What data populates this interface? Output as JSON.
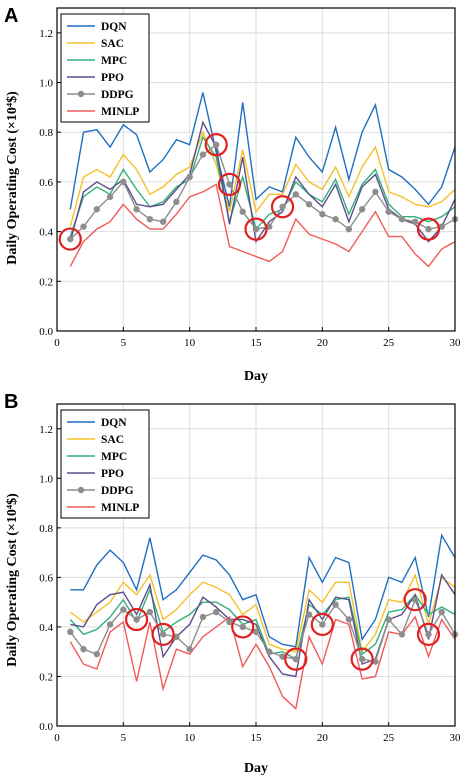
{
  "colors": {
    "DQN": "#1f6fc0",
    "SAC": "#f5c02a",
    "MPC": "#33b07a",
    "PPO": "#5a4e8c",
    "DDPG": "#8e8e8e",
    "MINLP": "#f05a5a",
    "highlight": "#e02020"
  },
  "chart_data": [
    {
      "type": "line",
      "panel_label": "A",
      "xlabel": "Day",
      "ylabel": "Daily Operating Cost (×10⁴$)",
      "xlim": [
        0,
        30
      ],
      "ylim": [
        0.0,
        1.3
      ],
      "xticks": [
        "0",
        "5",
        "10",
        "15",
        "20",
        "25",
        "30"
      ],
      "yticks": [
        "0.0",
        "0.2",
        "0.4",
        "0.6",
        "0.8",
        "1.0",
        "1.2"
      ],
      "grid": true,
      "legend": "top-left",
      "x": [
        1,
        2,
        3,
        4,
        5,
        6,
        7,
        8,
        9,
        10,
        11,
        12,
        13,
        14,
        15,
        16,
        17,
        18,
        19,
        20,
        21,
        22,
        23,
        24,
        25,
        26,
        27,
        28,
        29,
        30
      ],
      "series": [
        {
          "name": "DQN",
          "values": [
            0.49,
            0.8,
            0.81,
            0.74,
            0.83,
            0.79,
            0.64,
            0.69,
            0.77,
            0.75,
            0.96,
            0.72,
            0.5,
            0.92,
            0.53,
            0.58,
            0.56,
            0.78,
            0.7,
            0.64,
            0.82,
            0.61,
            0.8,
            0.91,
            0.65,
            0.62,
            0.57,
            0.51,
            0.58,
            0.74
          ]
        },
        {
          "name": "SAC",
          "values": [
            0.42,
            0.62,
            0.65,
            0.62,
            0.71,
            0.65,
            0.55,
            0.58,
            0.63,
            0.66,
            0.8,
            0.67,
            0.48,
            0.73,
            0.48,
            0.55,
            0.55,
            0.67,
            0.6,
            0.57,
            0.66,
            0.54,
            0.66,
            0.74,
            0.56,
            0.54,
            0.51,
            0.5,
            0.52,
            0.57
          ]
        },
        {
          "name": "MPC",
          "values": [
            0.38,
            0.54,
            0.58,
            0.55,
            0.65,
            0.57,
            0.5,
            0.52,
            0.58,
            0.61,
            0.78,
            0.7,
            0.44,
            0.62,
            0.41,
            0.47,
            0.49,
            0.6,
            0.55,
            0.52,
            0.61,
            0.47,
            0.59,
            0.65,
            0.51,
            0.46,
            0.46,
            0.44,
            0.46,
            0.5
          ]
        },
        {
          "name": "PPO",
          "values": [
            0.36,
            0.56,
            0.6,
            0.57,
            0.61,
            0.51,
            0.5,
            0.51,
            0.57,
            0.63,
            0.84,
            0.74,
            0.43,
            0.7,
            0.36,
            0.44,
            0.48,
            0.62,
            0.55,
            0.5,
            0.59,
            0.44,
            0.58,
            0.63,
            0.49,
            0.45,
            0.43,
            0.36,
            0.42,
            0.53
          ]
        },
        {
          "name": "DDPG",
          "values": [
            0.37,
            0.42,
            0.49,
            0.54,
            0.6,
            0.49,
            0.45,
            0.44,
            0.52,
            0.62,
            0.71,
            0.75,
            0.59,
            0.48,
            0.41,
            0.42,
            0.5,
            0.55,
            0.51,
            0.47,
            0.45,
            0.41,
            0.49,
            0.56,
            0.48,
            0.45,
            0.44,
            0.41,
            0.42,
            0.45
          ]
        },
        {
          "name": "MINLP",
          "values": [
            0.26,
            0.36,
            0.41,
            0.44,
            0.51,
            0.45,
            0.41,
            0.41,
            0.47,
            0.54,
            0.56,
            0.59,
            0.34,
            0.32,
            0.3,
            0.28,
            0.32,
            0.45,
            0.39,
            0.37,
            0.35,
            0.32,
            0.4,
            0.48,
            0.38,
            0.38,
            0.31,
            0.26,
            0.33,
            0.36
          ]
        }
      ],
      "highlight_days": [
        1,
        12,
        13,
        15,
        17,
        28
      ]
    },
    {
      "type": "line",
      "panel_label": "B",
      "xlabel": "Day",
      "ylabel": "Daily Operating Cost (×10⁴$)",
      "xlim": [
        0,
        30
      ],
      "ylim": [
        0.0,
        1.3
      ],
      "xticks": [
        "0",
        "5",
        "10",
        "15",
        "20",
        "25",
        "30"
      ],
      "yticks": [
        "0.0",
        "0.2",
        "0.4",
        "0.6",
        "0.8",
        "1.0",
        "1.2"
      ],
      "grid": true,
      "legend": "top-left",
      "x": [
        1,
        2,
        3,
        4,
        5,
        6,
        7,
        8,
        9,
        10,
        11,
        12,
        13,
        14,
        15,
        16,
        17,
        18,
        19,
        20,
        21,
        22,
        23,
        24,
        25,
        26,
        27,
        28,
        29,
        30
      ],
      "series": [
        {
          "name": "DQN",
          "values": [
            0.55,
            0.55,
            0.65,
            0.71,
            0.66,
            0.55,
            0.76,
            0.51,
            0.55,
            0.62,
            0.69,
            0.67,
            0.61,
            0.51,
            0.53,
            0.36,
            0.33,
            0.32,
            0.68,
            0.58,
            0.68,
            0.66,
            0.35,
            0.43,
            0.6,
            0.58,
            0.68,
            0.44,
            0.77,
            0.68
          ]
        },
        {
          "name": "SAC",
          "values": [
            0.46,
            0.42,
            0.46,
            0.5,
            0.58,
            0.53,
            0.61,
            0.43,
            0.47,
            0.53,
            0.58,
            0.56,
            0.53,
            0.45,
            0.49,
            0.33,
            0.31,
            0.3,
            0.55,
            0.5,
            0.58,
            0.58,
            0.3,
            0.37,
            0.51,
            0.5,
            0.61,
            0.41,
            0.6,
            0.56
          ]
        },
        {
          "name": "MPC",
          "values": [
            0.43,
            0.37,
            0.39,
            0.44,
            0.51,
            0.42,
            0.55,
            0.38,
            0.42,
            0.45,
            0.5,
            0.5,
            0.47,
            0.41,
            0.43,
            0.29,
            0.3,
            0.27,
            0.49,
            0.45,
            0.51,
            0.52,
            0.29,
            0.33,
            0.46,
            0.47,
            0.53,
            0.45,
            0.48,
            0.45
          ]
        },
        {
          "name": "PPO",
          "values": [
            0.41,
            0.4,
            0.49,
            0.53,
            0.54,
            0.45,
            0.57,
            0.28,
            0.36,
            0.41,
            0.52,
            0.48,
            0.43,
            0.43,
            0.41,
            0.28,
            0.21,
            0.2,
            0.51,
            0.43,
            0.52,
            0.51,
            0.25,
            0.27,
            0.43,
            0.45,
            0.53,
            0.35,
            0.61,
            0.53
          ]
        },
        {
          "name": "DDPG",
          "values": [
            0.38,
            0.31,
            0.29,
            0.41,
            0.47,
            0.43,
            0.46,
            0.37,
            0.36,
            0.31,
            0.44,
            0.46,
            0.42,
            0.4,
            0.38,
            0.3,
            0.28,
            0.27,
            0.45,
            0.41,
            0.49,
            0.43,
            0.27,
            0.26,
            0.43,
            0.37,
            0.51,
            0.37,
            0.46,
            0.37
          ]
        },
        {
          "name": "MINLP",
          "values": [
            0.34,
            0.25,
            0.23,
            0.38,
            0.42,
            0.18,
            0.42,
            0.15,
            0.31,
            0.29,
            0.36,
            0.4,
            0.44,
            0.24,
            0.33,
            0.24,
            0.12,
            0.07,
            0.36,
            0.25,
            0.43,
            0.41,
            0.19,
            0.2,
            0.38,
            0.37,
            0.44,
            0.28,
            0.43,
            0.35
          ]
        }
      ],
      "highlight_days": [
        6,
        8,
        14,
        18,
        20,
        23,
        27,
        28
      ]
    }
  ]
}
